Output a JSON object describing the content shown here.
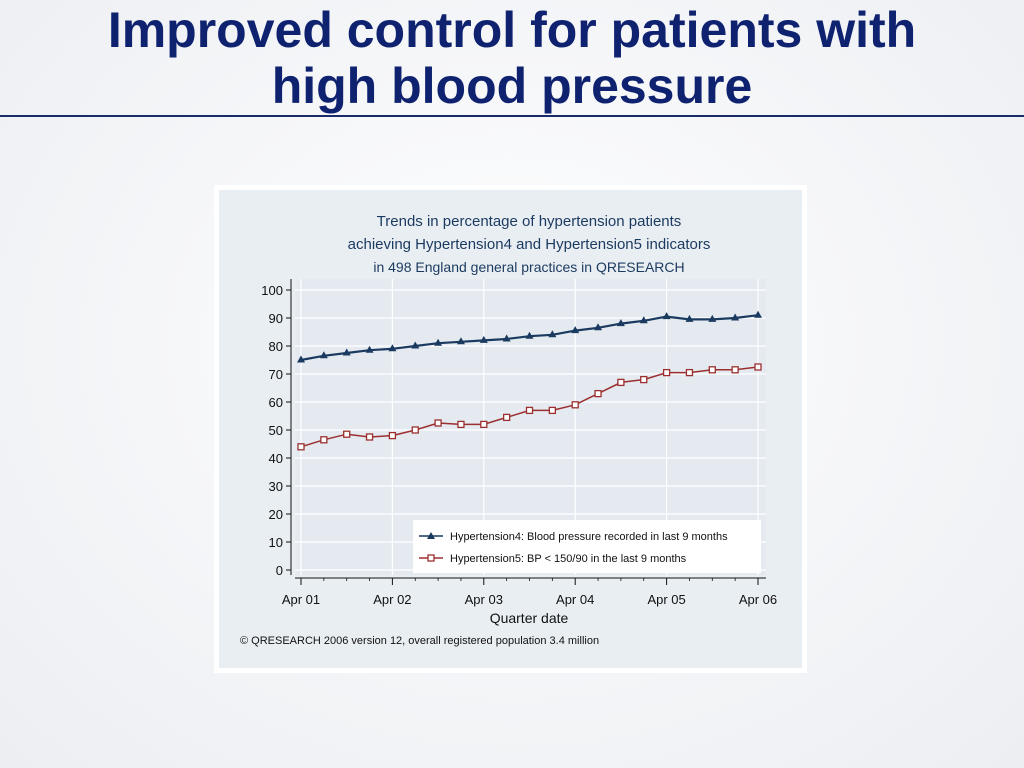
{
  "slide": {
    "title_line1": "Improved control for patients with",
    "title_line2": "high blood pressure"
  },
  "colors": {
    "title": "#0f2270",
    "series1": "#1b3a5f",
    "series2": "#9b2f2f",
    "plot_bg": "#e4eaf0",
    "panel_bg": "#e9eef3"
  },
  "chart_data": {
    "type": "line",
    "title_lines": [
      "Trends in percentage of hypertension patients",
      "achieving Hypertension4 and Hypertension5 indicators",
      "in 498 England general practices in QRESEARCH"
    ],
    "xlabel": "Quarter date",
    "ylabel": "",
    "ylim": [
      0,
      100
    ],
    "yticks": [
      0,
      10,
      20,
      30,
      40,
      50,
      60,
      70,
      80,
      90,
      100
    ],
    "xticks": [
      "Apr 01",
      "Apr 02",
      "Apr 03",
      "Apr 04",
      "Apr 05",
      "Apr 06"
    ],
    "x": [
      "Apr 01",
      "Jul 01",
      "Oct 01",
      "Jan 02",
      "Apr 02",
      "Jul 02",
      "Oct 02",
      "Jan 03",
      "Apr 03",
      "Jul 03",
      "Oct 03",
      "Jan 04",
      "Apr 04",
      "Jul 04",
      "Oct 04",
      "Jan 05",
      "Apr 05",
      "Jul 05",
      "Oct 05",
      "Jan 06",
      "Apr 06"
    ],
    "grid": true,
    "legend_position": "bottom-right",
    "series": [
      {
        "name": "Hypertension4: Blood pressure recorded in last 9 months",
        "marker": "triangle",
        "values": [
          75,
          76.5,
          77.5,
          78.5,
          79,
          80,
          81,
          81.5,
          82,
          82.5,
          83.5,
          84,
          85.5,
          86.5,
          88,
          89,
          90.5,
          89.5,
          89.5,
          90,
          91
        ]
      },
      {
        "name": "Hypertension5: BP < 150/90 in the last 9 months",
        "marker": "square",
        "values": [
          44,
          46.5,
          48.5,
          47.5,
          48,
          50,
          52.5,
          52,
          52,
          54.5,
          57,
          57,
          59,
          63,
          67,
          68,
          70.5,
          70.5,
          71.5,
          71.5,
          72.5
        ]
      }
    ],
    "footnote": "© QRESEARCH 2006 version 12, overall registered population 3.4 million"
  }
}
